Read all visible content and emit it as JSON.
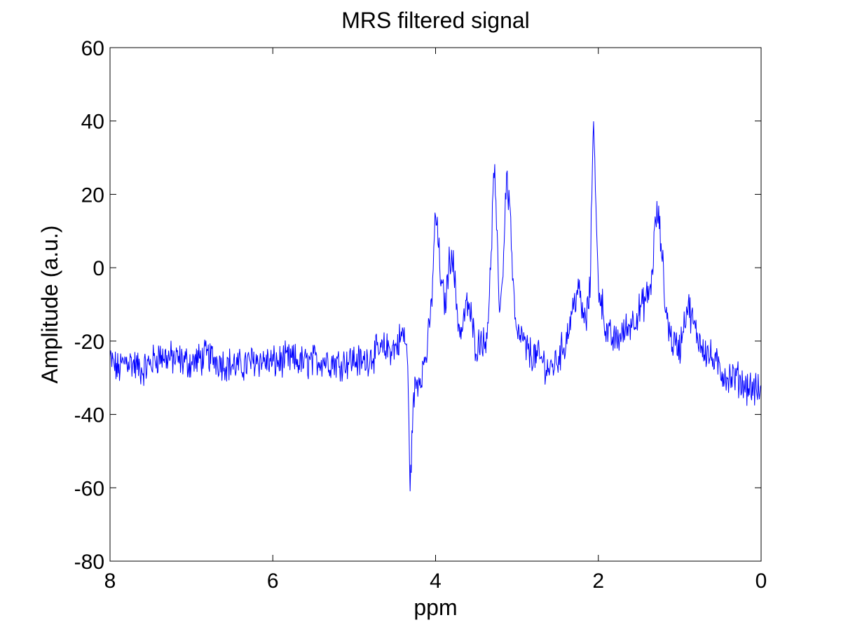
{
  "chart_data": {
    "type": "line",
    "title": "MRS filtered signal",
    "xlabel": "ppm",
    "ylabel": "Amplitude (a.u.)",
    "xlim": [
      8,
      0
    ],
    "x_reversed": true,
    "ylim": [
      -80,
      60
    ],
    "xticks": [
      8,
      6,
      4,
      2,
      0
    ],
    "yticks": [
      60,
      40,
      20,
      0,
      -20,
      -40,
      -60,
      -80
    ],
    "grid": false,
    "legend": "none",
    "line_color": "#0000ff",
    "baseline_level": -25,
    "noise_amplitude": 4,
    "series": [
      {
        "x": [
          8.0,
          7.9,
          7.8,
          7.6,
          7.4,
          7.2,
          7.0,
          6.8,
          6.6,
          6.4,
          6.2,
          6.0,
          5.8,
          5.6,
          5.4,
          5.2,
          5.0,
          4.9,
          4.8,
          4.6,
          4.5,
          4.4,
          4.35,
          4.31,
          4.28,
          4.25,
          4.2,
          4.15,
          4.1,
          4.05,
          4.0,
          3.97,
          3.93,
          3.88,
          3.83,
          3.8,
          3.76,
          3.72,
          3.68,
          3.64,
          3.6,
          3.56,
          3.52,
          3.48,
          3.44,
          3.4,
          3.34,
          3.28,
          3.25,
          3.22,
          3.18,
          3.13,
          3.08,
          3.05,
          3.0,
          2.95,
          2.9,
          2.8,
          2.7,
          2.6,
          2.5,
          2.4,
          2.3,
          2.25,
          2.2,
          2.15,
          2.1,
          2.08,
          2.06,
          2.03,
          2.0,
          1.95,
          1.9,
          1.8,
          1.7,
          1.6,
          1.5,
          1.4,
          1.35,
          1.3,
          1.27,
          1.22,
          1.18,
          1.1,
          1.0,
          0.95,
          0.9,
          0.8,
          0.7,
          0.6,
          0.5,
          0.4,
          0.3,
          0.2,
          0.1,
          0.0
        ],
        "y": [
          -25,
          -28,
          -25,
          -28,
          -24,
          -25,
          -26,
          -24,
          -26,
          -27,
          -25,
          -26,
          -25,
          -26,
          -25,
          -26,
          -25,
          -26,
          -24,
          -22,
          -22,
          -18,
          -22,
          -60,
          -40,
          -32,
          -30,
          -27,
          -22,
          -10,
          15,
          8,
          -5,
          -10,
          2,
          5,
          -5,
          -15,
          -18,
          -12,
          -10,
          -14,
          -20,
          -22,
          -18,
          -22,
          -10,
          28,
          10,
          -10,
          -5,
          25,
          15,
          -5,
          -20,
          -18,
          -22,
          -24,
          -25,
          -28,
          -25,
          -20,
          -10,
          -5,
          -12,
          -15,
          -5,
          20,
          45,
          15,
          -5,
          -10,
          -18,
          -20,
          -18,
          -15,
          -12,
          -8,
          -5,
          12,
          15,
          5,
          -10,
          -20,
          -22,
          -15,
          -10,
          -18,
          -22,
          -25,
          -28,
          -30,
          -30,
          -32,
          -33,
          -34
        ]
      }
    ]
  }
}
